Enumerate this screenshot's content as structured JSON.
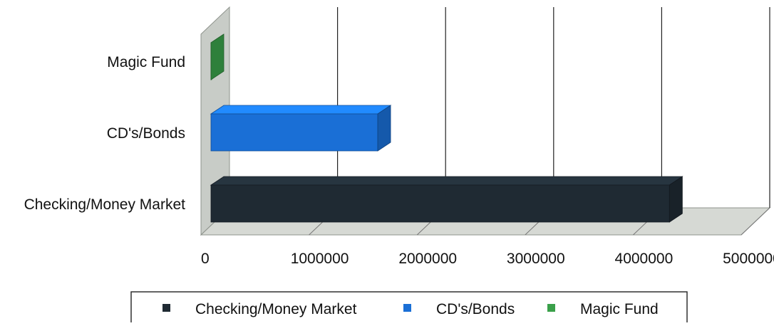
{
  "chart_data": {
    "type": "bar",
    "orientation": "horizontal",
    "style": "3d",
    "categories": [
      "Checking/Money Market",
      "CD's/Bonds",
      "Magic Fund"
    ],
    "values": [
      4600000,
      1900000,
      0
    ],
    "xlim": [
      0,
      5000000
    ],
    "x_ticks": [
      "0",
      "1000000",
      "2000000",
      "3000000",
      "4000000",
      "5000000"
    ],
    "grid": true,
    "legend": {
      "position": "bottom",
      "entries": [
        "Checking/Money Market",
        "CD's/Bonds",
        "Magic Fund"
      ]
    },
    "colors": [
      "#1f2a33",
      "#1a6fd6",
      "#3aa04a"
    ]
  }
}
